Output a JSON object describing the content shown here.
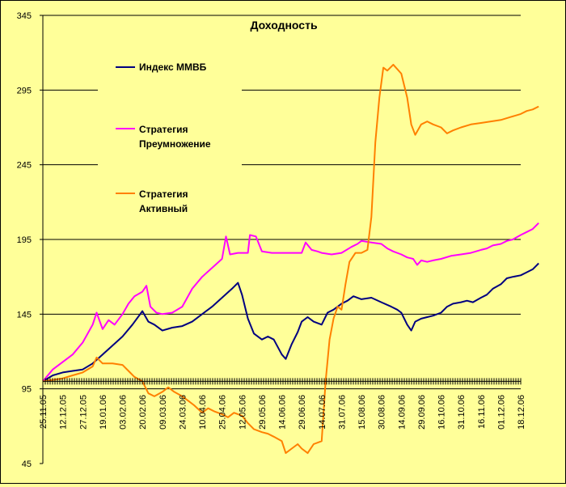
{
  "chart_data": {
    "type": "line",
    "title": "Доходность",
    "ylim": [
      45,
      345
    ],
    "yticks": [
      45,
      95,
      145,
      195,
      245,
      295,
      345
    ],
    "grid": "horizontal",
    "legend_placement": "upper-left inside plot",
    "xtick_labels": [
      "25.11.05",
      "12.12.05",
      "27.12.05",
      "19.01.06",
      "03.02.06",
      "20.02.06",
      "09.03.06",
      "24.03.06",
      "10.04.06",
      "25.04.06",
      "12.05.06",
      "29.05.06",
      "14.06.06",
      "29.06.06",
      "14.07.06",
      "31.07.06",
      "15.08.06",
      "30.08.06",
      "14.09.06",
      "29.09.06",
      "16.10.06",
      "31.10.06",
      "16.11.06",
      "01.12.06",
      "18.12.06"
    ],
    "series": [
      {
        "name": "Индекс ММВБ",
        "color": "#000080",
        "points": [
          [
            0,
            100
          ],
          [
            0.5,
            104
          ],
          [
            1,
            106
          ],
          [
            1.5,
            107
          ],
          [
            2,
            108
          ],
          [
            2.5,
            112
          ],
          [
            3,
            118
          ],
          [
            3.5,
            124
          ],
          [
            4,
            130
          ],
          [
            4.5,
            138
          ],
          [
            5,
            147
          ],
          [
            5.3,
            140
          ],
          [
            5.6,
            138
          ],
          [
            6,
            134
          ],
          [
            6.5,
            136
          ],
          [
            7,
            137
          ],
          [
            7.5,
            140
          ],
          [
            8,
            145
          ],
          [
            8.5,
            150
          ],
          [
            9,
            156
          ],
          [
            9.5,
            162
          ],
          [
            9.8,
            166
          ],
          [
            10,
            158
          ],
          [
            10.3,
            142
          ],
          [
            10.6,
            132
          ],
          [
            11,
            128
          ],
          [
            11.3,
            130
          ],
          [
            11.6,
            128
          ],
          [
            12,
            118
          ],
          [
            12.2,
            115
          ],
          [
            12.5,
            125
          ],
          [
            12.8,
            133
          ],
          [
            13,
            140
          ],
          [
            13.3,
            143
          ],
          [
            13.6,
            140
          ],
          [
            14,
            138
          ],
          [
            14.3,
            146
          ],
          [
            14.6,
            148
          ],
          [
            15,
            152
          ],
          [
            15.3,
            154
          ],
          [
            15.6,
            157
          ],
          [
            16,
            155
          ],
          [
            16.5,
            156
          ],
          [
            17,
            153
          ],
          [
            17.5,
            150
          ],
          [
            17.8,
            148
          ],
          [
            18,
            146
          ],
          [
            18.3,
            138
          ],
          [
            18.5,
            134
          ],
          [
            18.7,
            140
          ],
          [
            19,
            142
          ],
          [
            19.3,
            143
          ],
          [
            19.6,
            144
          ],
          [
            20,
            146
          ],
          [
            20.3,
            150
          ],
          [
            20.6,
            152
          ],
          [
            21,
            153
          ],
          [
            21.3,
            154
          ],
          [
            21.6,
            153
          ],
          [
            22,
            156
          ],
          [
            22.3,
            158
          ],
          [
            22.6,
            162
          ],
          [
            23,
            165
          ],
          [
            23.3,
            169
          ],
          [
            23.6,
            170
          ],
          [
            24,
            171
          ],
          [
            24.3,
            173
          ],
          [
            24.6,
            175
          ],
          [
            24.9,
            179
          ]
        ]
      },
      {
        "name": "Стратегия Преумножение",
        "color": "#ff00ff",
        "points": [
          [
            0,
            100
          ],
          [
            0.5,
            108
          ],
          [
            1,
            113
          ],
          [
            1.5,
            118
          ],
          [
            2,
            126
          ],
          [
            2.5,
            138
          ],
          [
            2.7,
            146
          ],
          [
            3,
            135
          ],
          [
            3.3,
            141
          ],
          [
            3.6,
            138
          ],
          [
            4,
            145
          ],
          [
            4.3,
            152
          ],
          [
            4.6,
            157
          ],
          [
            5,
            160
          ],
          [
            5.2,
            164
          ],
          [
            5.4,
            150
          ],
          [
            5.7,
            146
          ],
          [
            6,
            145
          ],
          [
            6.5,
            146
          ],
          [
            7,
            150
          ],
          [
            7.5,
            162
          ],
          [
            8,
            170
          ],
          [
            8.5,
            176
          ],
          [
            9,
            182
          ],
          [
            9.2,
            197
          ],
          [
            9.4,
            185
          ],
          [
            9.8,
            186
          ],
          [
            10.3,
            186
          ],
          [
            10.4,
            198
          ],
          [
            10.7,
            197
          ],
          [
            11,
            187
          ],
          [
            11.5,
            186
          ],
          [
            12,
            186
          ],
          [
            12.5,
            186
          ],
          [
            13,
            186
          ],
          [
            13.2,
            193
          ],
          [
            13.5,
            188
          ],
          [
            13.8,
            187
          ],
          [
            14,
            186
          ],
          [
            14.5,
            185
          ],
          [
            15,
            186
          ],
          [
            15.5,
            190
          ],
          [
            15.8,
            192
          ],
          [
            16,
            194
          ],
          [
            16.5,
            193
          ],
          [
            17,
            192
          ],
          [
            17.3,
            189
          ],
          [
            17.6,
            187
          ],
          [
            18,
            185
          ],
          [
            18.3,
            183
          ],
          [
            18.6,
            182
          ],
          [
            18.8,
            178
          ],
          [
            19,
            181
          ],
          [
            19.3,
            180
          ],
          [
            19.6,
            181
          ],
          [
            20,
            182
          ],
          [
            20.5,
            184
          ],
          [
            21,
            185
          ],
          [
            21.5,
            186
          ],
          [
            22,
            188
          ],
          [
            22.3,
            189
          ],
          [
            22.6,
            191
          ],
          [
            23,
            192
          ],
          [
            23.3,
            194
          ],
          [
            23.6,
            195
          ],
          [
            24,
            198
          ],
          [
            24.3,
            200
          ],
          [
            24.6,
            202
          ],
          [
            24.9,
            206
          ]
        ]
      },
      {
        "name": "Стратегия Активный",
        "color": "#ff8000",
        "points": [
          [
            0,
            100
          ],
          [
            0.5,
            101
          ],
          [
            1,
            102
          ],
          [
            1.5,
            104
          ],
          [
            2,
            106
          ],
          [
            2.5,
            110
          ],
          [
            2.7,
            116
          ],
          [
            3,
            112
          ],
          [
            3.5,
            112
          ],
          [
            4,
            111
          ],
          [
            4.3,
            107
          ],
          [
            4.6,
            103
          ],
          [
            5,
            100
          ],
          [
            5.3,
            92
          ],
          [
            5.6,
            90
          ],
          [
            6,
            93
          ],
          [
            6.3,
            96
          ],
          [
            6.6,
            93
          ],
          [
            7,
            90
          ],
          [
            7.3,
            87
          ],
          [
            7.6,
            84
          ],
          [
            8,
            79
          ],
          [
            8.3,
            82
          ],
          [
            8.6,
            80
          ],
          [
            9,
            78
          ],
          [
            9.3,
            76
          ],
          [
            9.6,
            79
          ],
          [
            10,
            77
          ],
          [
            10.3,
            72
          ],
          [
            10.6,
            68
          ],
          [
            11,
            66
          ],
          [
            11.3,
            65
          ],
          [
            11.6,
            63
          ],
          [
            12,
            60
          ],
          [
            12.2,
            52
          ],
          [
            12.5,
            55
          ],
          [
            12.8,
            58
          ],
          [
            13,
            55
          ],
          [
            13.3,
            52
          ],
          [
            13.6,
            58
          ],
          [
            14,
            60
          ],
          [
            14.2,
            100
          ],
          [
            14.4,
            128
          ],
          [
            14.6,
            142
          ],
          [
            14.8,
            150
          ],
          [
            15,
            148
          ],
          [
            15.2,
            165
          ],
          [
            15.4,
            180
          ],
          [
            15.7,
            186
          ],
          [
            16,
            186
          ],
          [
            16.3,
            188
          ],
          [
            16.5,
            210
          ],
          [
            16.7,
            260
          ],
          [
            16.9,
            290
          ],
          [
            17.1,
            310
          ],
          [
            17.3,
            308
          ],
          [
            17.6,
            312
          ],
          [
            18,
            306
          ],
          [
            18.3,
            290
          ],
          [
            18.5,
            272
          ],
          [
            18.7,
            265
          ],
          [
            19,
            272
          ],
          [
            19.3,
            274
          ],
          [
            19.6,
            272
          ],
          [
            20,
            270
          ],
          [
            20.3,
            266
          ],
          [
            20.6,
            268
          ],
          [
            21,
            270
          ],
          [
            21.5,
            272
          ],
          [
            22,
            273
          ],
          [
            22.5,
            274
          ],
          [
            23,
            275
          ],
          [
            23.5,
            277
          ],
          [
            24,
            279
          ],
          [
            24.3,
            281
          ],
          [
            24.6,
            282
          ],
          [
            24.9,
            284
          ]
        ]
      }
    ]
  }
}
